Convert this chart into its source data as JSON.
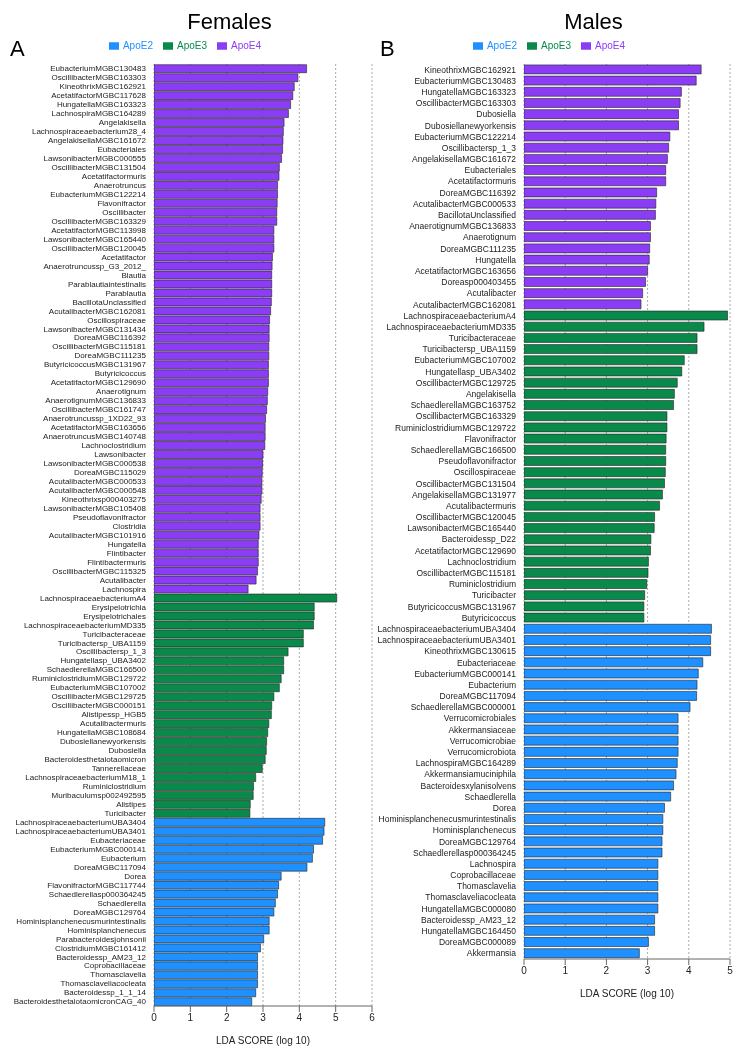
{
  "chart_data": [
    {
      "type": "bar",
      "orientation": "horizontal",
      "stacked": true,
      "title": "Females",
      "annotations": [
        "A"
      ],
      "xlabel": "LDA SCORE (log 10)",
      "xlim": [
        0,
        6
      ],
      "xticks": [
        0,
        1,
        2,
        3,
        4,
        5,
        6
      ],
      "grid": "x",
      "legend": "top",
      "categories": [
        "EubacteriumMGBC130483",
        "OscillibacterMGBC163303",
        "KineothrixMGBC162921",
        "AcetatifactorMGBC117628",
        "HungatellaMGBC163323",
        "LachnospiraMGBC164289",
        "Angelakisella",
        "Lachnospiraceaebacterium28_4",
        "AngelakisellaMGBC161672",
        "Eubacteriales",
        "LawsonibacterMGBC000555",
        "OscillibacterMGBC131504",
        "Acetatifactormuris",
        "Anaerotruncus",
        "EubacteriumMGBC122214",
        "Flavonifractor",
        "Oscillibacter",
        "OscillibacterMGBC163329",
        "AcetatifactorMGBC113998",
        "LawsonibacterMGBC165440",
        "OscillibacterMGBC120045",
        "Acetatifactor",
        "Anaerotruncussp_G3_2012_",
        "Blautia",
        "Parablautiaintestinalis",
        "Parablautia",
        "BacillotaUnclassified",
        "AcutalibacterMGBC162081",
        "Oscillospiraceae",
        "LawsonibacterMGBC131434",
        "DoreaMGBC116392",
        "OscillibacterMGBC115181",
        "DoreaMGBC111235",
        "ButyricicoccusMGBC131967",
        "Butyricicoccus",
        "AcetatifactorMGBC129690",
        "Anaerotignum",
        "AnaerotignumMGBC136833",
        "OscillibacterMGBC161747",
        "Anaerotruncussp_1XD22_93",
        "AcetatifactorMGBC163656",
        "AnaerotruncusMGBC140748",
        "Lachnoclostridium",
        "Lawsonibacter",
        "LawsonibacterMGBC000538",
        "DoreaMGBC115029",
        "AcutalibacterMGBC000533",
        "AcutalibacterMGBC000548",
        "Kineothrixsp000403275",
        "LawsonibacterMGBC105408",
        "Pseudoflavonifractor",
        "Clostridia",
        "AcutalibacterMGBC101916",
        "Hungatella",
        "Flintibacter",
        "Flintibactermuris",
        "OscillibacterMGBC115325",
        "Acutalibacter",
        "Lachnospira",
        "LachnospiraceaebacteriumA4",
        "Erysipelotrichia",
        "Erysipelotrichales",
        "LachnospiraceaebacteriumMD335",
        "Turicibacteraceae",
        "Turicibactersp_UBA1159",
        "Oscillibactersp_1_3",
        "Hungatellasp_UBA3402",
        "SchaedlerellaMGBC166500",
        "RuminiclostridiumMGBC129722",
        "EubacteriumMGBC107002",
        "OscillibacterMGBC129725",
        "OscillibacterMGBC000151",
        "Alistipessp_HGB5",
        "Acutalibactermuris",
        "HungatellaMGBC108684",
        "Dubosiellanewyorkensis",
        "Dubosiella",
        "Bacteroidesthetaiotaomicron",
        "Tannerellaceae",
        "LachnospiraceaebacteriumM18_1",
        "Ruminiclostridium",
        "Muribaculumsp002492595",
        "Alistipes",
        "Turicibacter",
        "LachnospiraceaebacteriumUBA3404",
        "LachnospiraceaebacteriumUBA3401",
        "Eubacteriaceae",
        "EubacteriumMGBC000141",
        "Eubacterium",
        "DoreaMGBC117094",
        "Dorea",
        "FlavonifractorMGBC117744",
        "Schaedlerellasp000364245",
        "Schaedlerella",
        "DoreaMGBC129764",
        "Hominisplanchenecusmurintestinalis",
        "Hominisplanchenecus",
        "Parabacteroidesjohnsonii",
        "ClostridiumMGBC161412",
        "Bacteroidessp_AM23_12",
        "Coprobacillaceae",
        "Thomasclavelia",
        "Thomasclaveliacocleata",
        "Bacteroidessp_1_1_14",
        "BacteroidesthetaiotaomicronCAG_40"
      ],
      "series": [
        {
          "name": "ApoE2",
          "color": "#1e90ff",
          "values": [
            null,
            null,
            null,
            null,
            null,
            null,
            null,
            null,
            null,
            null,
            null,
            null,
            null,
            null,
            null,
            null,
            null,
            null,
            null,
            null,
            null,
            null,
            null,
            null,
            null,
            null,
            null,
            null,
            null,
            null,
            null,
            null,
            null,
            null,
            null,
            null,
            null,
            null,
            null,
            null,
            null,
            null,
            null,
            null,
            null,
            null,
            null,
            null,
            null,
            null,
            null,
            null,
            null,
            null,
            null,
            null,
            null,
            null,
            null,
            null,
            null,
            null,
            null,
            null,
            null,
            null,
            null,
            null,
            null,
            null,
            null,
            null,
            null,
            null,
            null,
            null,
            null,
            null,
            null,
            null,
            null,
            null,
            null,
            null,
            4.7,
            4.68,
            4.64,
            4.39,
            4.36,
            4.21,
            3.5,
            3.43,
            3.4,
            3.34,
            3.3,
            3.17,
            3.17,
            3.02,
            2.93,
            2.85,
            2.85,
            2.85,
            2.85,
            2.8,
            2.69
          ]
        },
        {
          "name": "ApoE3",
          "color": "#0a8a4a",
          "values": [
            null,
            null,
            null,
            null,
            null,
            null,
            null,
            null,
            null,
            null,
            null,
            null,
            null,
            null,
            null,
            null,
            null,
            null,
            null,
            null,
            null,
            null,
            null,
            null,
            null,
            null,
            null,
            null,
            null,
            null,
            null,
            null,
            null,
            null,
            null,
            null,
            null,
            null,
            null,
            null,
            null,
            null,
            null,
            null,
            null,
            null,
            null,
            null,
            null,
            null,
            null,
            null,
            null,
            null,
            null,
            null,
            null,
            null,
            null,
            5.03,
            4.41,
            4.41,
            4.39,
            4.11,
            4.11,
            3.69,
            3.57,
            3.57,
            3.5,
            3.45,
            3.3,
            3.24,
            3.23,
            3.16,
            3.13,
            3.1,
            3.09,
            3.06,
            2.98,
            2.8,
            2.74,
            2.73,
            2.65,
            2.64,
            null,
            null,
            null,
            null,
            null,
            null,
            null,
            null,
            null,
            null,
            null,
            null,
            null,
            null,
            null,
            null,
            null,
            null,
            null,
            null,
            null
          ]
        },
        {
          "name": "ApoE4",
          "color": "#8b3cf5",
          "values": [
            4.2,
            3.96,
            3.86,
            3.82,
            3.76,
            3.7,
            3.58,
            3.56,
            3.55,
            3.54,
            3.51,
            3.45,
            3.44,
            3.4,
            3.4,
            3.39,
            3.38,
            3.38,
            3.3,
            3.3,
            3.3,
            3.26,
            3.25,
            3.24,
            3.24,
            3.24,
            3.23,
            3.21,
            3.18,
            3.17,
            3.17,
            3.16,
            3.16,
            3.15,
            3.15,
            3.15,
            3.13,
            3.12,
            3.1,
            3.07,
            3.06,
            3.06,
            3.05,
            3.0,
            2.99,
            2.98,
            2.97,
            2.97,
            2.95,
            2.92,
            2.92,
            2.92,
            2.89,
            2.87,
            2.87,
            2.87,
            2.85,
            2.81,
            2.59,
            null,
            null,
            null,
            null,
            null,
            null,
            null,
            null,
            null,
            null,
            null,
            null,
            null,
            null,
            null,
            null,
            null,
            null,
            null,
            null,
            null,
            null,
            null,
            null,
            null,
            null,
            null,
            null,
            null,
            null,
            null,
            null,
            null,
            null,
            null,
            null,
            null,
            null,
            null,
            null,
            null,
            null,
            null,
            null,
            null,
            null
          ]
        }
      ]
    },
    {
      "type": "bar",
      "orientation": "horizontal",
      "stacked": true,
      "title": "Males",
      "annotations": [
        "B"
      ],
      "xlabel": "LDA SCORE (log 10)",
      "xlim": [
        0,
        5
      ],
      "xticks": [
        0,
        1,
        2,
        3,
        4,
        5
      ],
      "grid": "x",
      "legend": "top",
      "categories": [
        "KineothrixMGBC162921",
        "EubacteriumMGBC130483",
        "HungatellaMGBC163323",
        "OscillibacterMGBC163303",
        "Dubosiella",
        "Dubosiellanewyorkensis",
        "EubacteriumMGBC122214",
        "Oscillibactersp_1_3",
        "AngelakisellaMGBC161672",
        "Eubacteriales",
        "Acetatifactormuris",
        "DoreaMGBC116392",
        "AcutalibacterMGBC000533",
        "BacillotaUnclassified",
        "AnaerotignumMGBC136833",
        "Anaerotignum",
        "DoreaMGBC111235",
        "Hungatella",
        "AcetatifactorMGBC163656",
        "Doreasp000403455",
        "Acutalibacter",
        "AcutalibacterMGBC162081",
        "LachnospiraceaebacteriumA4",
        "LachnospiraceaebacteriumMD335",
        "Turicibacteraceae",
        "Turicibactersp_UBA1159",
        "EubacteriumMGBC107002",
        "Hungatellasp_UBA3402",
        "OscillibacterMGBC129725",
        "Angelakisella",
        "SchaedlerellaMGBC163752",
        "OscillibacterMGBC163329",
        "RuminiclostridiumMGBC129722",
        "Flavonifractor",
        "SchaedlerellaMGBC166500",
        "Pseudoflavonifractor",
        "Oscillospiraceae",
        "OscillibacterMGBC131504",
        "AngelakisellaMGBC131977",
        "Acutalibactermuris",
        "OscillibacterMGBC120045",
        "LawsonibacterMGBC165440",
        "Bacteroidessp_D22",
        "AcetatifactorMGBC129690",
        "Lachnoclostridium",
        "OscillibacterMGBC115181",
        "Ruminiclostridium",
        "Turicibacter",
        "ButyricicoccusMGBC131967",
        "Butyricicoccus",
        "LachnospiraceaebacteriumUBA3404",
        "LachnospiraceaebacteriumUBA3401",
        "KineothrixMGBC130615",
        "Eubacteriaceae",
        "EubacteriumMGBC000141",
        "Eubacterium",
        "DoreaMGBC117094",
        "SchaedlerellaMGBC000001",
        "Verrucomicrobiales",
        "Akkermansiaceae",
        "Verrucomicrobiae",
        "Verrucomicrobiota",
        "LachnospiraMGBC164289",
        "Akkermansiamuciniphila",
        "Bacteroidesxylanisolvens",
        "Schaedlerella",
        "Dorea",
        "Hominisplanchenecusmurintestinalis",
        "Hominisplanchenecus",
        "DoreaMGBC129764",
        "Schaedlerellasp000364245",
        "Lachnospira",
        "Coprobacillaceae",
        "Thomasclavelia",
        "Thomasclaveliacocleata",
        "HungatellaMGBC000080",
        "Bacteroidessp_AM23_12",
        "HungatellaMGBC164450",
        "DoreaMGBC000089",
        "Akkermansia"
      ],
      "series": [
        {
          "name": "ApoE2",
          "color": "#1e90ff",
          "values": [
            null,
            null,
            null,
            null,
            null,
            null,
            null,
            null,
            null,
            null,
            null,
            null,
            null,
            null,
            null,
            null,
            null,
            null,
            null,
            null,
            null,
            null,
            null,
            null,
            null,
            null,
            null,
            null,
            null,
            null,
            null,
            null,
            null,
            null,
            null,
            null,
            null,
            null,
            null,
            null,
            null,
            null,
            null,
            null,
            null,
            null,
            null,
            null,
            null,
            null,
            4.55,
            4.53,
            4.53,
            4.34,
            4.23,
            4.2,
            4.19,
            4.03,
            3.74,
            3.74,
            3.74,
            3.74,
            3.72,
            3.69,
            3.63,
            3.56,
            3.41,
            3.37,
            3.37,
            3.35,
            3.35,
            3.25,
            3.25,
            3.25,
            3.25,
            3.25,
            3.17,
            3.17,
            3.02,
            2.8
          ]
        },
        {
          "name": "ApoE3",
          "color": "#0a8a4a",
          "values": [
            null,
            null,
            null,
            null,
            null,
            null,
            null,
            null,
            null,
            null,
            null,
            null,
            null,
            null,
            null,
            null,
            null,
            null,
            null,
            null,
            null,
            null,
            4.94,
            4.37,
            4.2,
            4.2,
            3.89,
            3.83,
            3.72,
            3.65,
            3.63,
            3.47,
            3.47,
            3.45,
            3.44,
            3.44,
            3.43,
            3.41,
            3.36,
            3.29,
            3.17,
            3.16,
            3.08,
            3.07,
            3.02,
            3.01,
            2.98,
            2.93,
            2.91,
            2.91,
            null,
            null,
            null,
            null,
            null,
            null,
            null,
            null,
            null,
            null,
            null,
            null,
            null,
            null,
            null,
            null,
            null,
            null,
            null,
            null,
            null,
            null,
            null,
            null,
            null,
            null,
            null,
            null,
            null,
            null
          ]
        },
        {
          "name": "ApoE4",
          "color": "#8b3cf5",
          "values": [
            4.3,
            4.18,
            3.82,
            3.79,
            3.75,
            3.75,
            3.54,
            3.51,
            3.48,
            3.44,
            3.44,
            3.22,
            3.2,
            3.19,
            3.07,
            3.07,
            3.05,
            3.04,
            3.0,
            2.95,
            2.88,
            2.84,
            null,
            null,
            null,
            null,
            null,
            null,
            null,
            null,
            null,
            null,
            null,
            null,
            null,
            null,
            null,
            null,
            null,
            null,
            null,
            null,
            null,
            null,
            null,
            null,
            null,
            null,
            null,
            null,
            null,
            null,
            null,
            null,
            null,
            null,
            null,
            null,
            null,
            null,
            null,
            null,
            null,
            null,
            null,
            null,
            null,
            null,
            null,
            null,
            null,
            null,
            null,
            null,
            null,
            null,
            null,
            null,
            null,
            null
          ]
        }
      ]
    }
  ]
}
